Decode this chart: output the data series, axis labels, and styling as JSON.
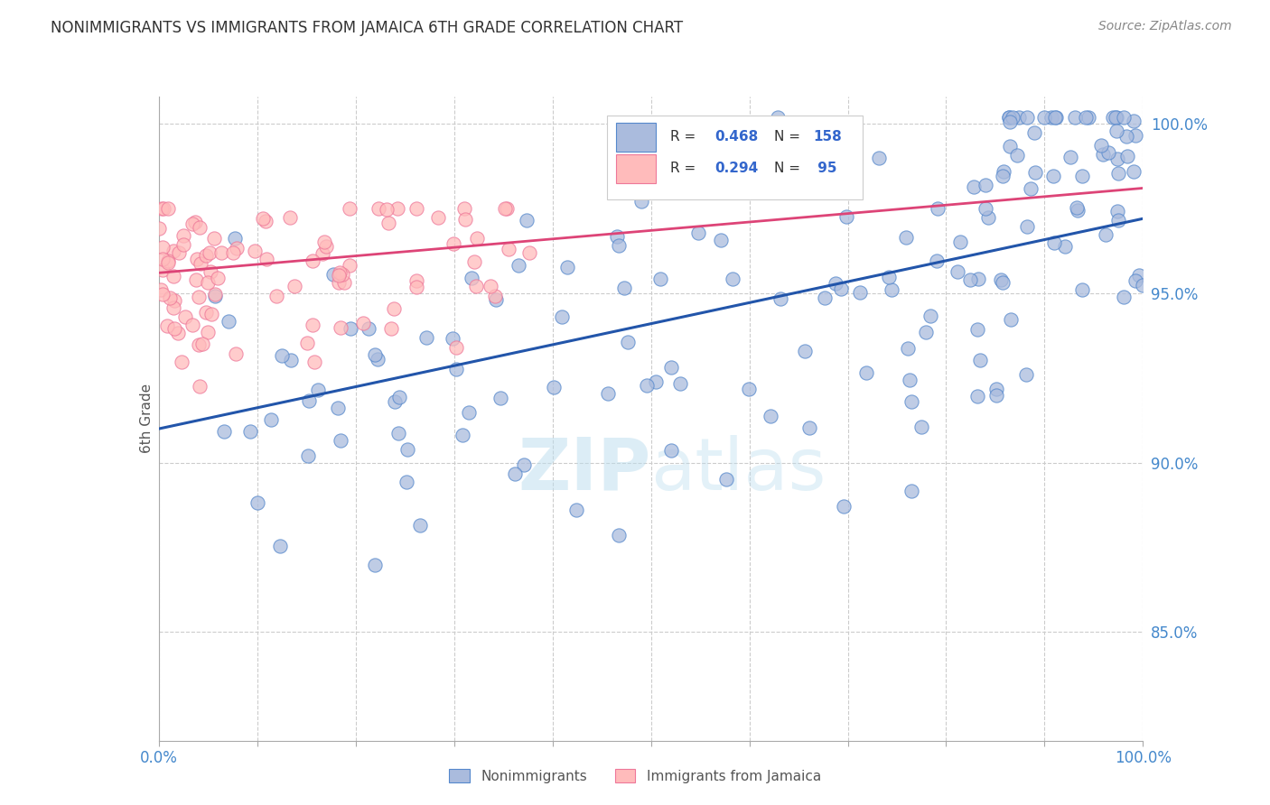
{
  "title": "NONIMMIGRANTS VS IMMIGRANTS FROM JAMAICA 6TH GRADE CORRELATION CHART",
  "source": "Source: ZipAtlas.com",
  "ylabel": "6th Grade",
  "xlim": [
    0.0,
    1.0
  ],
  "ylim": [
    0.818,
    1.008
  ],
  "yticks": [
    0.85,
    0.9,
    0.95,
    1.0
  ],
  "ytick_labels": [
    "85.0%",
    "90.0%",
    "95.0%",
    "100.0%"
  ],
  "blue_R": 0.468,
  "blue_N": 158,
  "pink_R": 0.294,
  "pink_N": 95,
  "blue_fill_color": "#AABBDD",
  "blue_edge_color": "#5588CC",
  "pink_fill_color": "#FFBBBB",
  "pink_edge_color": "#EE7799",
  "blue_line_color": "#2255AA",
  "pink_line_color": "#DD4477",
  "tick_color": "#4488CC",
  "watermark_color": "#BBDDEE",
  "background_color": "#FFFFFF",
  "grid_color": "#CCCCCC",
  "title_color": "#333333",
  "source_color": "#888888",
  "legend_text_color": "#333333",
  "legend_value_color": "#3366CC",
  "bottom_label_color": "#555555"
}
